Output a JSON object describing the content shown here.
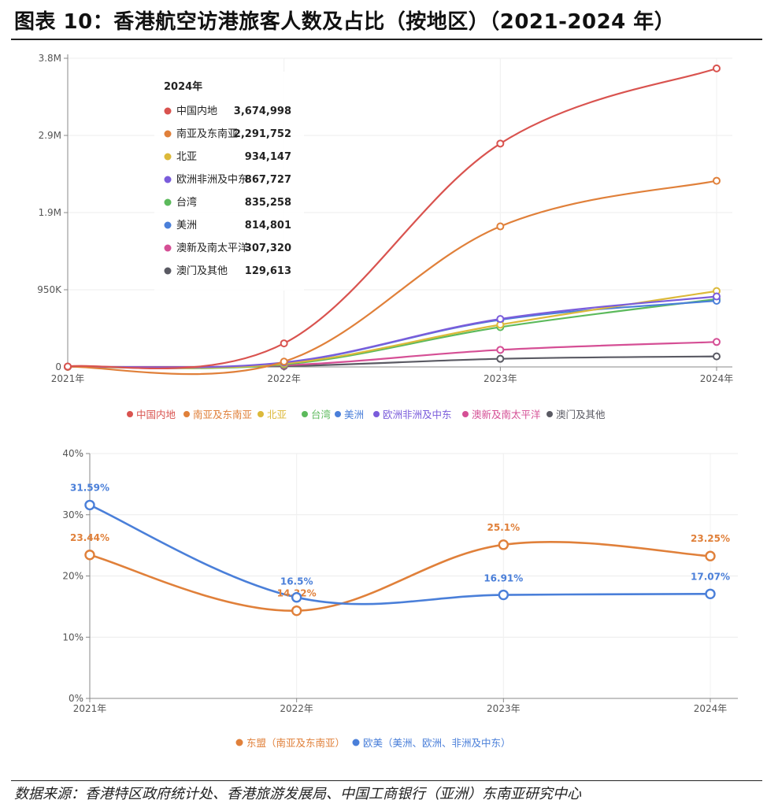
{
  "title": "图表 10：香港航空访港旅客人数及占比（按地区）（2021-2024 年）",
  "source": "数据来源：香港特区政府统计处、香港旅游发展局、中国工商银行（亚洲）东南亚研究中心",
  "chart_data": [
    {
      "type": "line",
      "title": "",
      "categories": [
        "2021年",
        "2022年",
        "2023年",
        "2024年"
      ],
      "y_ticks": [
        "0",
        "950K",
        "1.9M",
        "2.9M",
        "3.8M"
      ],
      "y_tick_values": [
        0,
        950000,
        1900000,
        2850000,
        3800000
      ],
      "ylim": [
        0,
        3800000
      ],
      "series": [
        {
          "name": "中国内地",
          "color": "#d9534f",
          "values": [
            5000,
            290000,
            2750000,
            3674998
          ]
        },
        {
          "name": "南亚及东南亚",
          "color": "#e0803a",
          "values": [
            3000,
            65000,
            1730000,
            2291752
          ]
        },
        {
          "name": "北亚",
          "color": "#dcb93a",
          "values": [
            2000,
            40000,
            520000,
            934147
          ]
        },
        {
          "name": "台湾",
          "color": "#5cba5c",
          "values": [
            2000,
            30000,
            490000,
            835258
          ]
        },
        {
          "name": "美洲",
          "color": "#4a7fd9",
          "values": [
            3000,
            50000,
            580000,
            814801
          ]
        },
        {
          "name": "欧洲非洲及中东",
          "color": "#7a5cdb",
          "values": [
            3000,
            55000,
            590000,
            867727
          ]
        },
        {
          "name": "澳新及南太平洋",
          "color": "#d54f95",
          "values": [
            1000,
            20000,
            210000,
            307320
          ]
        },
        {
          "name": "澳门及其他",
          "color": "#5a5a63",
          "values": [
            1000,
            10000,
            100000,
            129613
          ]
        }
      ],
      "tooltip_title": "2024年",
      "tooltip_items": [
        {
          "name": "中国内地",
          "value": "3,674,998",
          "color": "#d9534f"
        },
        {
          "name": "南亚及东南亚",
          "value": "2,291,752",
          "color": "#e0803a"
        },
        {
          "name": "北亚",
          "value": "934,147",
          "color": "#dcb93a"
        },
        {
          "name": "欧洲非洲及中东",
          "value": "867,727",
          "color": "#7a5cdb"
        },
        {
          "name": "台湾",
          "value": "835,258",
          "color": "#5cba5c"
        },
        {
          "name": "美洲",
          "value": "814,801",
          "color": "#4a7fd9"
        },
        {
          "name": "澳新及南太平洋",
          "value": "307,320",
          "color": "#d54f95"
        },
        {
          "name": "澳门及其他",
          "value": "129,613",
          "color": "#5a5a63"
        }
      ],
      "legend": [
        "中国内地",
        "南亚及东南亚",
        "北亚",
        "台湾",
        "美洲",
        "欧洲非洲及中东",
        "澳新及南太平洋",
        "澳门及其他"
      ]
    },
    {
      "type": "line",
      "title": "",
      "categories": [
        "2021年",
        "2022年",
        "2023年",
        "2024年"
      ],
      "y_ticks": [
        "0%",
        "10%",
        "20%",
        "30%",
        "40%"
      ],
      "y_tick_values": [
        0,
        10,
        20,
        30,
        40
      ],
      "ylim": [
        0,
        40
      ],
      "series": [
        {
          "name": "东盟（南亚及东南亚）",
          "color": "#e0803a",
          "values": [
            23.44,
            14.32,
            25.1,
            23.25
          ],
          "labels": [
            "23.44%",
            "14.32%",
            "25.1%",
            "23.25%"
          ]
        },
        {
          "name": "欧美（美洲、欧洲、非洲及中东）",
          "color": "#4a7fd9",
          "values": [
            31.59,
            16.5,
            16.91,
            17.07
          ],
          "labels": [
            "31.59%",
            "16.5%",
            "16.91%",
            "17.07%"
          ]
        }
      ]
    }
  ]
}
